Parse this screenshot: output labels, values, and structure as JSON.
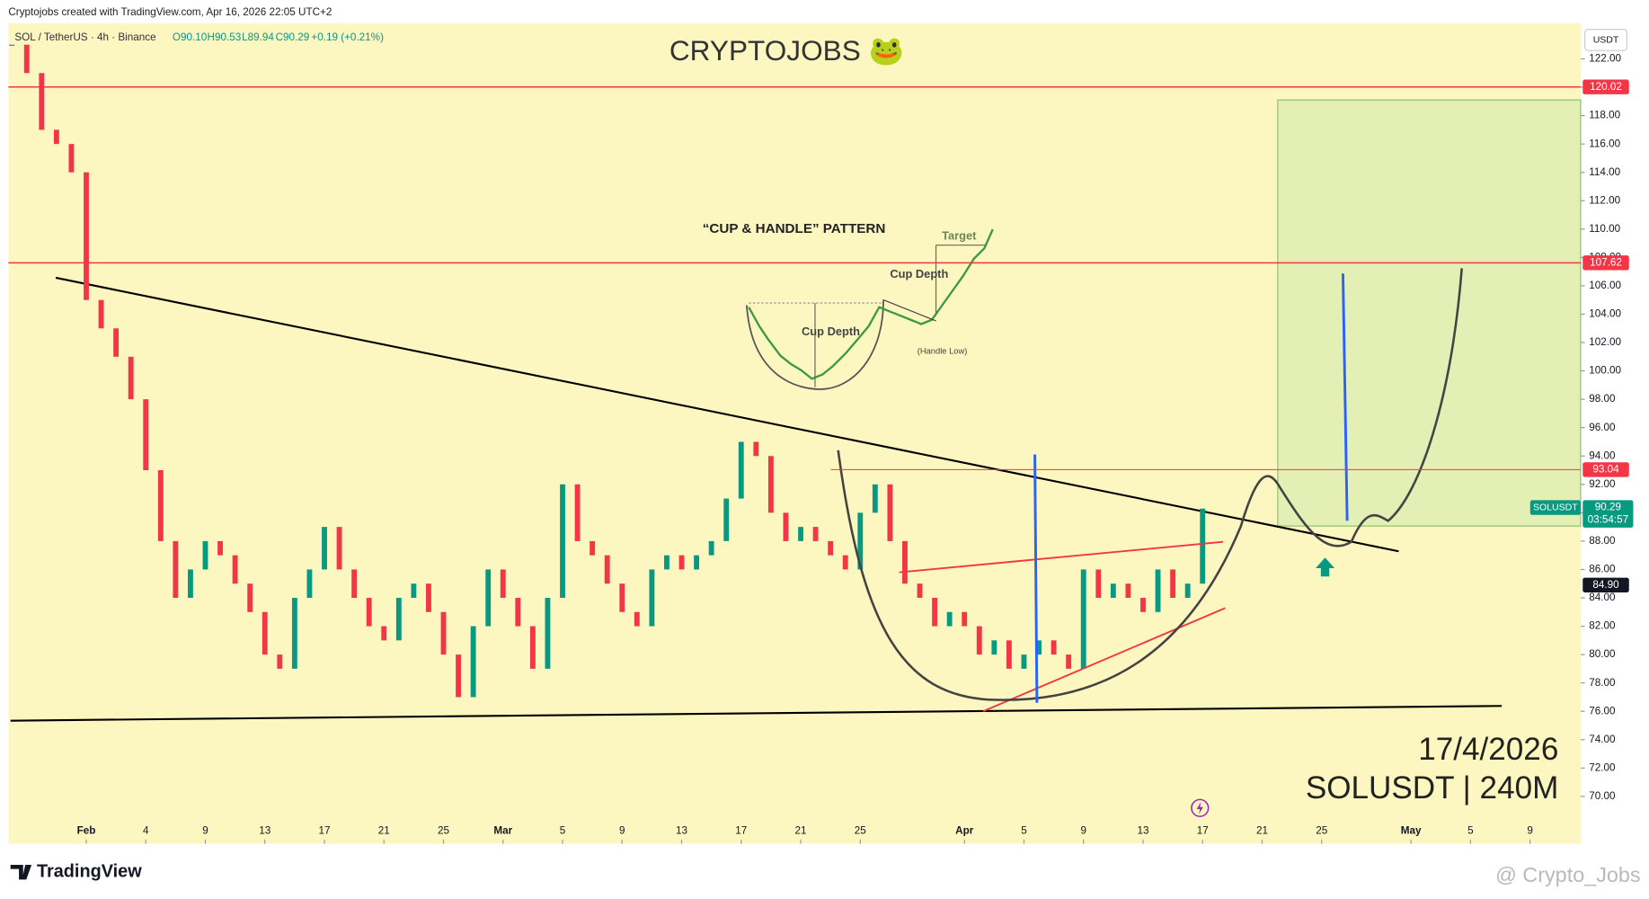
{
  "header": {
    "credit": "Cryptojobs created with TradingView.com, Apr 16, 2026 22:05 UTC+2",
    "symbol": "SOL / TetherUS · 4h · Binance",
    "open": "O90.10",
    "high": "H90.53",
    "low": "L89.94",
    "close": "C90.29",
    "change": "+0.19 (+0.21%)",
    "currency": "USDT"
  },
  "title": "CRYPTOJOBS 🐸",
  "inset": {
    "title": "“CUP & HANDLE” PATTERN",
    "target": "Target",
    "cup_depth_1": "Cup Depth",
    "cup_depth_2": "Cup Depth",
    "handle_low": "(Handle Low)"
  },
  "stamp": {
    "date": "17/4/2026",
    "symbol": "SOLUSDT | 240M"
  },
  "footer": {
    "brand": "TradingView",
    "watermark": "@ Crypto_Jobs"
  },
  "chart": {
    "type": "candlestick",
    "up_color": "#089981",
    "down_color": "#f23645",
    "xlim": [
      -5.23,
      100.4
    ],
    "ylim": [
      66.66,
      124.52
    ],
    "xticks": [
      {
        "value": 0,
        "label": "Feb"
      },
      4,
      {
        "value": 8,
        "label": "9"
      },
      {
        "value": 12,
        "label": "13"
      },
      {
        "value": 16,
        "label": "17"
      },
      {
        "value": 20,
        "label": "21"
      },
      {
        "value": 24,
        "label": "25"
      },
      {
        "value": 28,
        "label": "Mar"
      },
      {
        "value": 32,
        "label": "5"
      },
      {
        "value": 36,
        "label": "9"
      },
      {
        "value": 40,
        "label": "13"
      },
      {
        "value": 44,
        "label": "17"
      },
      {
        "value": 48,
        "label": "21"
      },
      {
        "value": 52,
        "label": "25"
      },
      {
        "value": 59,
        "label": "Apr"
      },
      {
        "value": 63,
        "label": "5"
      },
      {
        "value": 67,
        "label": "9"
      },
      {
        "value": 71,
        "label": "13"
      },
      {
        "value": 75,
        "label": "17"
      },
      {
        "value": 79,
        "label": "21"
      },
      {
        "value": 83,
        "label": "25"
      },
      {
        "value": 89,
        "label": "May"
      },
      {
        "value": 93,
        "label": "5"
      },
      {
        "value": 97,
        "label": "9"
      }
    ],
    "yticks": [
      {
        "value": 70,
        "label": "70.00"
      },
      {
        "value": 72,
        "label": "72.00"
      },
      {
        "value": 74,
        "label": "74.00"
      },
      {
        "value": 76,
        "label": "76.00"
      },
      {
        "value": 78,
        "label": "78.00"
      },
      {
        "value": 80,
        "label": "80.00"
      },
      {
        "value": 82,
        "label": "82.00"
      },
      {
        "value": 84,
        "label": "84.00"
      },
      {
        "value": 86,
        "label": "86.00"
      },
      {
        "value": 88,
        "label": "88.00"
      },
      {
        "value": 90,
        "label": "90.00"
      },
      {
        "value": 92,
        "label": "92.00"
      },
      {
        "value": 94,
        "label": "94.00"
      },
      {
        "value": 96,
        "label": "96.00"
      },
      {
        "value": 98,
        "label": "98.00"
      },
      {
        "value": 100,
        "label": "100.00"
      },
      {
        "value": 102,
        "label": "102.00"
      },
      {
        "value": 104,
        "label": "104.00"
      },
      {
        "value": 106,
        "label": "106.00"
      },
      {
        "value": 108,
        "label": "108.00"
      },
      {
        "value": 110,
        "label": "110.00"
      },
      {
        "value": 112,
        "label": "112.00"
      },
      {
        "value": 114,
        "label": "114.00"
      },
      {
        "value": 116,
        "label": "116.00"
      },
      {
        "value": 118,
        "label": "118.00"
      },
      {
        "value": 120,
        "label": "120.00"
      },
      {
        "value": 122,
        "label": "122.00"
      }
    ],
    "x": [
      -5,
      -4,
      -3,
      -2,
      -1,
      0,
      1,
      2,
      3,
      4,
      5,
      6,
      7,
      8,
      9,
      10,
      11,
      12,
      13,
      14,
      15,
      16,
      17,
      18,
      19,
      20,
      21,
      22,
      23,
      24,
      25,
      26,
      27,
      28,
      29,
      30,
      31,
      32,
      33,
      34,
      35,
      36,
      37,
      38,
      39,
      40,
      41,
      42,
      43,
      44,
      45,
      46,
      47,
      48,
      49,
      50,
      51,
      52,
      53,
      54,
      55,
      56,
      57,
      58,
      59,
      60,
      61,
      62,
      63,
      64,
      65,
      66,
      67,
      68,
      69,
      70,
      71,
      72,
      73,
      74,
      75
    ],
    "values": [
      123,
      121,
      117,
      116,
      114,
      105,
      103,
      101,
      98,
      93,
      88,
      84,
      86,
      88,
      87,
      85,
      83,
      80,
      79,
      84,
      86,
      89,
      86,
      84,
      82,
      81,
      84,
      85,
      83,
      80,
      77,
      82,
      86,
      84,
      82,
      79,
      84,
      92,
      88,
      87,
      85,
      83,
      82,
      86,
      87,
      86,
      87,
      88,
      91,
      95,
      94,
      90,
      88,
      89,
      88,
      87,
      86,
      90,
      92,
      88,
      85,
      84,
      82,
      83,
      82,
      80,
      81,
      79,
      80,
      81,
      80,
      79,
      86,
      84,
      85,
      84,
      83,
      86,
      84,
      85,
      90.29
    ],
    "levels": [
      {
        "value": 120.02,
        "color": "#f23645",
        "line": true
      },
      {
        "value": 107.62,
        "color": "#f23645",
        "line": true
      },
      {
        "value": 93.04,
        "color": "#f23645",
        "line": true
      },
      {
        "value": 84.9,
        "label": "84.90",
        "color": "#131722",
        "line": false
      }
    ],
    "last": {
      "symbol": "SOLUSDT",
      "value": 90.29,
      "countdown": "03:54:57",
      "color": "#089981"
    }
  }
}
